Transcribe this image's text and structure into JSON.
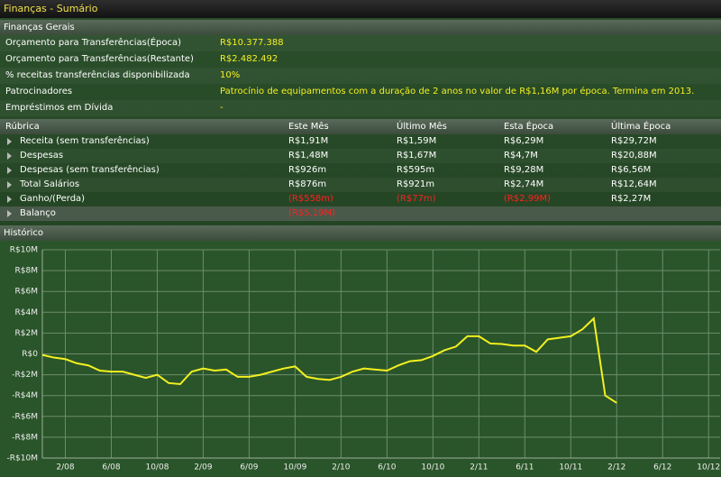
{
  "header": {
    "title": "Finanças - Sumário"
  },
  "general": {
    "title": "Finanças Gerais",
    "rows": [
      [
        "Orçamento para Transferências(Época)",
        "R$10.377.388"
      ],
      [
        "Orçamento para Transferências(Restante)",
        "R$2.482.492"
      ],
      [
        "% receitas transferências disponibilizada",
        "10%"
      ],
      [
        "Patrocinadores",
        "Patrocínio de equipamentos com a duração de 2 anos no valor de R$1,16M por época. Termina em 2013."
      ],
      [
        "Empréstimos em Dívida",
        "-"
      ]
    ]
  },
  "table": {
    "columns": [
      "Rúbrica",
      "Este Mês",
      "Último Mês",
      "Esta Época",
      "Última Época"
    ],
    "rows": [
      [
        "Receita (sem transferências)",
        "R$1,91M",
        "R$1,59M",
        "R$6,29M",
        "R$29,72M"
      ],
      [
        "Despesas",
        "R$1,48M",
        "R$1,67M",
        "R$4,7M",
        "R$20,88M"
      ],
      [
        "Despesas (sem transferências)",
        "R$926m",
        "R$595m",
        "R$9,28M",
        "R$6,56M"
      ],
      [
        "Total Salários",
        "R$876m",
        "R$921m",
        "R$2,74M",
        "R$12,64M"
      ],
      [
        "Ganho/(Perda)",
        "(R$558m)",
        "(R$77m)",
        "(R$2,99M)",
        "R$2,27M"
      ],
      [
        "Balanço",
        "(R$5,19M)"
      ]
    ]
  },
  "chart_data": {
    "type": "line",
    "title": "Histórico",
    "categories": [
      null,
      null,
      "2/08",
      null,
      null,
      null,
      "6/08",
      null,
      null,
      null,
      "10/08",
      null,
      null,
      null,
      "2/09",
      null,
      null,
      null,
      "6/09",
      null,
      null,
      null,
      "10/09",
      null,
      null,
      null,
      "2/10",
      null,
      null,
      null,
      "6/10",
      null,
      null,
      null,
      "10/10",
      null,
      null,
      null,
      "2/11",
      null,
      null,
      null,
      "6/11",
      null,
      null,
      null,
      "10/11",
      null,
      null,
      null,
      "2/12",
      null,
      null,
      null,
      "6/12",
      null,
      null,
      null,
      "10/12",
      null
    ],
    "series": [
      {
        "color": "#f4f020",
        "values": [
          -0.1,
          -0.35,
          -0.5,
          -0.9,
          -1.1,
          -1.6,
          -1.7,
          -1.7,
          -2.0,
          -2.3,
          -2.0,
          -2.8,
          -2.9,
          -1.7,
          -1.4,
          -1.6,
          -1.5,
          -2.2,
          -2.2,
          -2.0,
          -1.7,
          -1.4,
          -1.2,
          -2.2,
          -2.4,
          -2.5,
          -2.2,
          -1.7,
          -1.4,
          -1.5,
          -1.6,
          -1.1,
          -0.7,
          -0.6,
          -0.2,
          0.35,
          0.7,
          1.7,
          1.7,
          1.0,
          0.95,
          0.8,
          0.8,
          0.2,
          1.4,
          1.55,
          1.7,
          2.35,
          3.4,
          -4.0,
          -4.7,
          null,
          null,
          null,
          null,
          null,
          null,
          null,
          null,
          null
        ]
      }
    ],
    "ylim": [
      -10,
      10
    ],
    "yticks": [
      {
        "value": -10,
        "label": "-R$10M"
      },
      {
        "value": -8,
        "label": "-R$8M"
      },
      {
        "value": -6,
        "label": "-R$6M"
      },
      {
        "value": -4,
        "label": "-R$4M"
      },
      {
        "value": -2,
        "label": "-R$2M"
      },
      {
        "value": 0,
        "label": "R$0"
      },
      {
        "value": 2,
        "label": "R$2M"
      },
      {
        "value": 4,
        "label": "R$4M"
      },
      {
        "value": 6,
        "label": "R$6M"
      },
      {
        "value": 8,
        "label": "R$8M"
      },
      {
        "value": 10,
        "label": "R$10M"
      }
    ],
    "grid": true
  }
}
